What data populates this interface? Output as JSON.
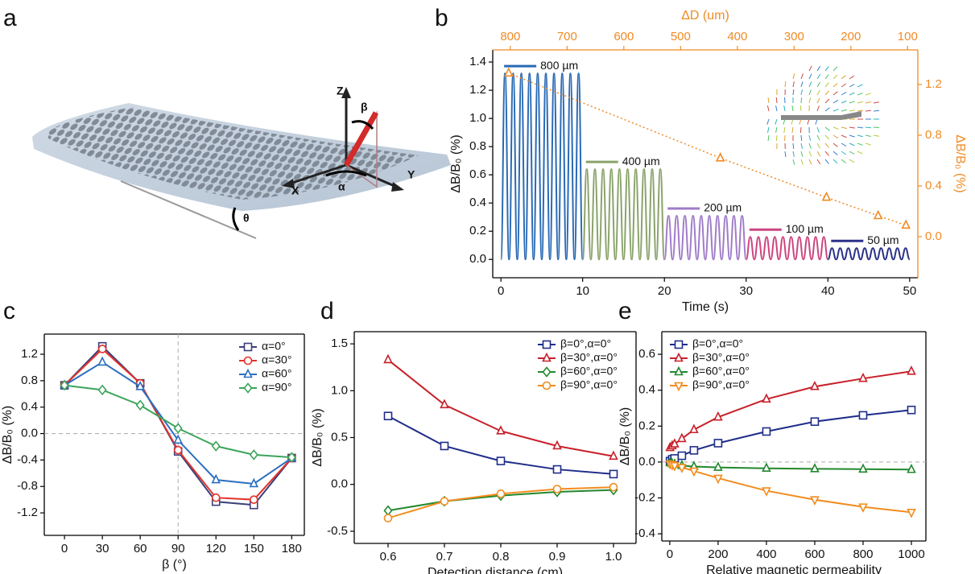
{
  "panel_labels": [
    "a",
    "b",
    "c",
    "d",
    "e"
  ],
  "illustration": {
    "labels": [
      "Z",
      "β",
      "X",
      "α",
      "Y",
      "θ"
    ]
  },
  "chart_data": [
    {
      "type": "line",
      "xlabel": "Time (s)",
      "ylabel": "ΔB/B₀ (%)",
      "x2label": "ΔD (um)",
      "y2label": "ΔB/B₀ (%)",
      "xlim": [
        -1,
        51
      ],
      "xticks": [
        0,
        10,
        20,
        30,
        40,
        50
      ],
      "ylim": [
        -0.13,
        1.486
      ],
      "yticks": [
        {
          "value": 0,
          "label": "0.0"
        },
        0.2,
        0.4,
        0.6,
        0.8,
        {
          "value": 1,
          "label": "1.0"
        },
        1.2,
        1.4
      ],
      "x2lim": [
        831,
        82
      ],
      "x2ticks": [
        800,
        700,
        600,
        500,
        400,
        300,
        200,
        100
      ],
      "y2lim": [
        -0.324,
        1.473
      ],
      "y2ticks": [
        {
          "value": 0,
          "label": "0.0"
        },
        0.4,
        0.8,
        1.2
      ],
      "legend": "inline",
      "series": [
        {
          "name": "800 µm",
          "color": "#2a6ab5",
          "smooth": true,
          "x": [
            0,
            0.5,
            1,
            1.5,
            2,
            2.5,
            3,
            3.5,
            4,
            4.5,
            5,
            5.5,
            6,
            6.5,
            7,
            7.5,
            8,
            8.5,
            9,
            9.5,
            10
          ],
          "values": [
            0,
            1.32,
            0,
            1.32,
            0,
            1.32,
            0,
            1.32,
            0,
            1.32,
            0,
            1.32,
            0,
            1.32,
            0,
            1.32,
            0,
            1.32,
            0,
            1.32,
            0
          ]
        },
        {
          "name": "400 µm",
          "color": "#8aa36a",
          "smooth": true,
          "x": [
            10,
            10.5,
            11,
            11.5,
            12,
            12.5,
            13,
            13.5,
            14,
            14.5,
            15,
            15.5,
            16,
            16.5,
            17,
            17.5,
            18,
            18.5,
            19,
            19.5,
            20
          ],
          "values": [
            0,
            0.64,
            0,
            0.64,
            0,
            0.64,
            0,
            0.64,
            0,
            0.64,
            0,
            0.64,
            0,
            0.64,
            0,
            0.64,
            0,
            0.64,
            0,
            0.64,
            0
          ]
        },
        {
          "name": "200 µm",
          "color": "#a07cc8",
          "smooth": true,
          "x": [
            20,
            20.5,
            21,
            21.5,
            22,
            22.5,
            23,
            23.5,
            24,
            24.5,
            25,
            25.5,
            26,
            26.5,
            27,
            27.5,
            28,
            28.5,
            29,
            29.5,
            30
          ],
          "values": [
            0,
            0.31,
            0,
            0.31,
            0,
            0.31,
            0,
            0.31,
            0,
            0.31,
            0,
            0.31,
            0,
            0.31,
            0,
            0.31,
            0,
            0.31,
            0,
            0.31,
            0
          ]
        },
        {
          "name": "100 µm",
          "color": "#cc4580",
          "smooth": true,
          "x": [
            30,
            30.5,
            31,
            31.5,
            32,
            32.5,
            33,
            33.5,
            34,
            34.5,
            35,
            35.5,
            36,
            36.5,
            37,
            37.5,
            38,
            38.5,
            39,
            39.5,
            40
          ],
          "values": [
            0,
            0.16,
            0,
            0.16,
            0,
            0.16,
            0,
            0.16,
            0,
            0.16,
            0,
            0.16,
            0,
            0.16,
            0,
            0.16,
            0,
            0.16,
            0,
            0.16,
            0
          ]
        },
        {
          "name": "50 µm",
          "color": "#2b318a",
          "smooth": true,
          "x": [
            40,
            40.5,
            41,
            41.5,
            42,
            42.5,
            43,
            43.5,
            44,
            44.5,
            45,
            45.5,
            46,
            46.5,
            47,
            47.5,
            48,
            48.5,
            49,
            49.5,
            50
          ],
          "values": [
            0,
            0.08,
            0,
            0.08,
            0,
            0.08,
            0,
            0.08,
            0,
            0.08,
            0,
            0.08,
            0,
            0.08,
            0,
            0.08,
            0,
            0.08,
            0,
            0.08,
            0
          ]
        },
        {
          "color": "#f08a24",
          "axis": "y2",
          "xaxis": "x2",
          "style": "dotted",
          "marker": "triangle",
          "x": [
            803,
            430,
            243,
            152,
            103
          ],
          "values": [
            1.29,
            0.62,
            0.31,
            0.165,
            0.09
          ]
        }
      ]
    },
    {
      "type": "line",
      "xlabel": "β (°)",
      "ylabel": "ΔB/B₀ (%)",
      "x": [
        0,
        30,
        60,
        90,
        120,
        150,
        180
      ],
      "xlim": [
        -16,
        190
      ],
      "xticks": [
        0,
        30,
        60,
        90,
        120,
        150,
        180
      ],
      "ylim": [
        -1.54,
        1.505
      ],
      "yticks": [
        -1.2,
        -0.8,
        -0.4,
        {
          "value": 0,
          "label": "0.0"
        },
        0.4,
        0.8,
        1.2
      ],
      "vlines": [
        90
      ],
      "hlines": [
        0
      ],
      "legend": "upper right",
      "series": [
        {
          "name": "α=0°",
          "color": "#3b3f78",
          "marker": "square",
          "values": [
            0.73,
            1.32,
            0.76,
            -0.27,
            -1.03,
            -1.08,
            -0.37
          ]
        },
        {
          "name": "α=30°",
          "color": "#e3322b",
          "marker": "circle",
          "values": [
            0.73,
            1.28,
            0.76,
            -0.25,
            -0.97,
            -1.0,
            -0.37
          ]
        },
        {
          "name": "α=60°",
          "color": "#2a6fc0",
          "marker": "triangle",
          "values": [
            0.73,
            1.08,
            0.71,
            -0.1,
            -0.7,
            -0.76,
            -0.37
          ]
        },
        {
          "name": "α=90°",
          "color": "#3ba55a",
          "marker": "diamond",
          "values": [
            0.73,
            0.66,
            0.43,
            0.08,
            -0.19,
            -0.32,
            -0.36
          ]
        }
      ]
    },
    {
      "type": "line",
      "xlabel": "Detection distance (cm)",
      "ylabel": "ΔB/B₀ (%)",
      "x": [
        0.6,
        0.7,
        0.8,
        0.9,
        1.0
      ],
      "xlim": [
        0.54,
        1.04
      ],
      "xticks": [
        0.6,
        0.7,
        0.8,
        0.9,
        {
          "value": 1,
          "label": "1.0"
        }
      ],
      "ylim": [
        -0.63,
        1.63
      ],
      "yticks": [
        -0.5,
        {
          "value": 0,
          "label": "0.0"
        },
        0.5,
        {
          "value": 1,
          "label": "1.0"
        },
        1.5
      ],
      "legend": "upper right",
      "series": [
        {
          "name": "β=0°,α=0°",
          "color": "#1f2d8a",
          "marker": "square",
          "values": [
            0.73,
            0.41,
            0.25,
            0.16,
            0.11
          ]
        },
        {
          "name": "β=30°,α=0°",
          "color": "#c8202a",
          "marker": "triangle",
          "values": [
            1.33,
            0.85,
            0.57,
            0.41,
            0.3
          ]
        },
        {
          "name": "β=60°,α=0°",
          "color": "#22882e",
          "marker": "diamond",
          "values": [
            -0.28,
            -0.18,
            -0.12,
            -0.08,
            -0.06
          ]
        },
        {
          "name": "β=90°,α=0°",
          "color": "#f28c1e",
          "marker": "circle",
          "values": [
            -0.36,
            -0.18,
            -0.1,
            -0.05,
            -0.03
          ]
        }
      ]
    },
    {
      "type": "line",
      "xlabel": "Relative magnetic permeability",
      "ylabel": "ΔB/B₀ (%)",
      "x": [
        1,
        10,
        20,
        50,
        100,
        200,
        400,
        600,
        800,
        1000
      ],
      "xlim": [
        -33,
        1060
      ],
      "xticks": [
        0,
        200,
        400,
        600,
        800,
        1000
      ],
      "ylim": [
        -0.44,
        0.726
      ],
      "yticks": [
        -0.4,
        -0.2,
        {
          "value": 0,
          "label": "0.0"
        },
        0.2,
        0.4,
        0.6
      ],
      "hlines": [
        0
      ],
      "legend": "upper left",
      "series": [
        {
          "name": "β=0°,α=0°",
          "color": "#1f2d8a",
          "marker": "square",
          "values": [
            0.005,
            0.015,
            0.02,
            0.035,
            0.065,
            0.105,
            0.17,
            0.225,
            0.26,
            0.29
          ]
        },
        {
          "name": "β=30°,α=0°",
          "color": "#c8202a",
          "marker": "triangle",
          "values": [
            0.08,
            0.09,
            0.1,
            0.13,
            0.18,
            0.25,
            0.35,
            0.42,
            0.465,
            0.505
          ]
        },
        {
          "name": "β=60°,α=0°",
          "color": "#22882e",
          "marker": "triangle",
          "values": [
            -0.005,
            -0.01,
            -0.012,
            -0.02,
            -0.025,
            -0.03,
            -0.035,
            -0.038,
            -0.04,
            -0.042
          ]
        },
        {
          "name": "β=90°,α=0°",
          "color": "#f28c1e",
          "marker": "triangle-down",
          "values": [
            -0.01,
            -0.015,
            -0.02,
            -0.03,
            -0.05,
            -0.09,
            -0.16,
            -0.21,
            -0.25,
            -0.28
          ]
        }
      ]
    }
  ]
}
